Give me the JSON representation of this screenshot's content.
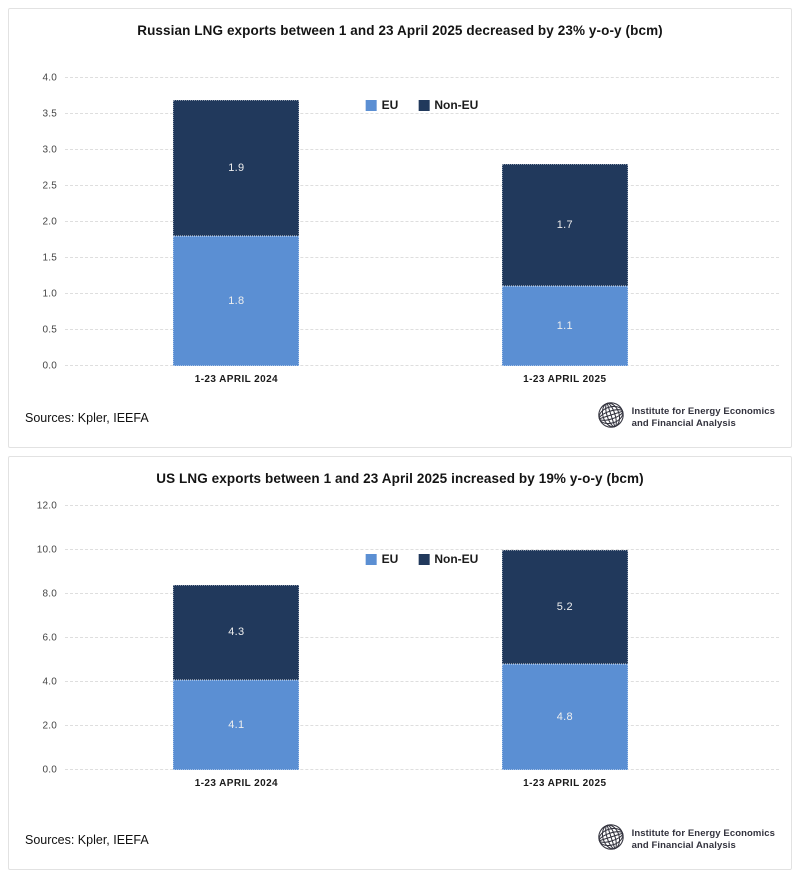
{
  "colors": {
    "eu": "#5b8fd3",
    "non_eu": "#21395c",
    "grid": "#dedede",
    "card_border": "#e2e2e2",
    "title_text": "#141414",
    "value_label": "#eeeeee",
    "logo_color": "#33333e"
  },
  "chart_data": [
    {
      "type": "bar",
      "stacked": true,
      "title": "Russian LNG exports between 1 and 23 April 2025 decreased by 23% y-o-y (bcm)",
      "categories": [
        "1-23 APRIL 2024",
        "1-23 APRIL 2025"
      ],
      "series": [
        {
          "name": "EU",
          "color_key": "eu",
          "values": [
            1.8,
            1.1
          ]
        },
        {
          "name": "Non-EU",
          "color_key": "non_eu",
          "values": [
            1.9,
            1.7
          ]
        }
      ],
      "ylim": [
        0,
        4.0
      ],
      "yticks": [
        "4.0",
        "3.5",
        "3.0",
        "2.5",
        "2.0",
        "1.5",
        "1.0",
        "0.5",
        "0.0"
      ],
      "grid": true,
      "legend_position": "top-center-inside",
      "value_labels": true,
      "sources": "Sources: Kpler, IEEFA",
      "logo": {
        "line1": "Institute for Energy Economics",
        "line2": "and Financial Analysis"
      }
    },
    {
      "type": "bar",
      "stacked": true,
      "title": "US LNG exports between 1 and 23 April 2025 increased by 19% y-o-y (bcm)",
      "categories": [
        "1-23 APRIL 2024",
        "1-23 APRIL 2025"
      ],
      "series": [
        {
          "name": "EU",
          "color_key": "eu",
          "values": [
            4.1,
            4.8
          ]
        },
        {
          "name": "Non-EU",
          "color_key": "non_eu",
          "values": [
            4.3,
            5.2
          ]
        }
      ],
      "ylim": [
        0,
        12.0
      ],
      "yticks": [
        "12.0",
        "10.0",
        "8.0",
        "6.0",
        "4.0",
        "2.0",
        "0.0"
      ],
      "grid": true,
      "legend_position": "top-center-inside",
      "value_labels": true,
      "sources": "Sources: Kpler, IEEFA",
      "logo": {
        "line1": "Institute for Energy Economics",
        "line2": "and Financial Analysis"
      }
    }
  ]
}
